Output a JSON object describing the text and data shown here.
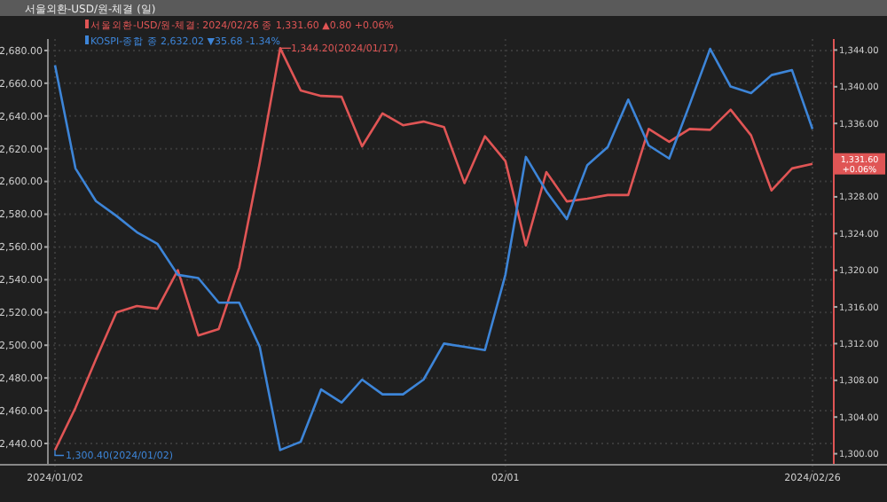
{
  "chart_data": {
    "type": "line",
    "title": "서울외환-USD/원-체결 (일)",
    "categories": [
      "2024/01/02",
      null,
      null,
      null,
      null,
      null,
      null,
      null,
      null,
      null,
      null,
      null,
      null,
      null,
      null,
      null,
      null,
      null,
      null,
      null,
      null,
      null,
      "02/01",
      null,
      null,
      null,
      null,
      null,
      null,
      null,
      null,
      null,
      null,
      null,
      null,
      null,
      null,
      "2024/02/26"
    ],
    "series": [
      {
        "name": "서울외환-USD/원-체결: 2024/02/26 종 1,331.60 ▲0.80 +0.06%",
        "color": "#e05555",
        "axis": "y2",
        "values": [
          1300.4,
          1305.0,
          1310.3,
          1315.4,
          1316.1,
          1315.8,
          1320.0,
          1312.9,
          1313.6,
          1320.3,
          1331.7,
          1344.2,
          1339.6,
          1339.0,
          1338.9,
          1333.5,
          1337.1,
          1335.8,
          1336.2,
          1335.6,
          1329.5,
          1334.6,
          1331.9,
          1322.7,
          1330.7,
          1327.5,
          1327.8,
          1328.2,
          1328.2,
          1335.4,
          1334.0,
          1335.4,
          1335.3,
          1337.5,
          1334.7,
          1328.7,
          1331.1,
          1331.6
        ]
      },
      {
        "name": "KOSPI-종합 종 2,632.02 ▼35.68 -1.34%",
        "color": "#3d85d8",
        "axis": "y",
        "values": [
          2671,
          2608,
          2588,
          2579,
          2569,
          2562,
          2543,
          2541,
          2526,
          2526,
          2499,
          2436,
          2441,
          2473,
          2465,
          2479,
          2470,
          2470,
          2479,
          2501,
          2499,
          2497,
          2543,
          2615,
          2594,
          2577,
          2610,
          2621,
          2650,
          2622,
          2614,
          2647,
          2681,
          2658,
          2654,
          2665,
          2668,
          2632.02
        ]
      }
    ],
    "ylim": [
      2427,
      2687
    ],
    "yticks": [
      {
        "value": 2440,
        "label": "2,440.00"
      },
      {
        "value": 2460,
        "label": "2,460.00"
      },
      {
        "value": 2480,
        "label": "2,480.00"
      },
      {
        "value": 2500,
        "label": "2,500.00"
      },
      {
        "value": 2520,
        "label": "2,520.00"
      },
      {
        "value": 2540,
        "label": "2,540.00"
      },
      {
        "value": 2560,
        "label": "2,560.00"
      },
      {
        "value": 2580,
        "label": "2,580.00"
      },
      {
        "value": 2600,
        "label": "2,600.00"
      },
      {
        "value": 2620,
        "label": "2,620.00"
      },
      {
        "value": 2640,
        "label": "2,640.00"
      },
      {
        "value": 2660,
        "label": "2,660.00"
      },
      {
        "value": 2680,
        "label": "2,680.00"
      }
    ],
    "y2lim": [
      1298.8,
      1345.2
    ],
    "y2ticks": [
      {
        "value": 1300,
        "label": "1,300.00"
      },
      {
        "value": 1304,
        "label": "1,304.00"
      },
      {
        "value": 1308,
        "label": "1,308.00"
      },
      {
        "value": 1312,
        "label": "1,312.00"
      },
      {
        "value": 1316,
        "label": "1,316.00"
      },
      {
        "value": 1320,
        "label": "1,320.00"
      },
      {
        "value": 1324,
        "label": "1,324.00"
      },
      {
        "value": 1328,
        "label": "1,328.00"
      },
      {
        "value": 1336,
        "label": "1,336.00"
      },
      {
        "value": 1340,
        "label": "1,340.00"
      },
      {
        "value": 1344,
        "label": "1,344.00"
      }
    ],
    "annotations": [
      "1,344.20(2024/01/17)",
      "1,300.40(2024/01/02)",
      "1,331.60 +0.06%"
    ],
    "grid": true,
    "legend": "top left",
    "marker": "none",
    "line_style": "solid"
  }
}
